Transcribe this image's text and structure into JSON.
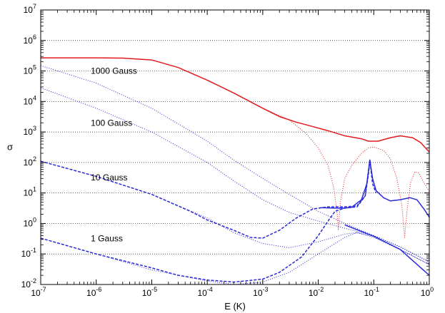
{
  "chart_data": {
    "type": "line",
    "title": "",
    "xlabel": "E (K)",
    "ylabel": "σ",
    "xscale": "log",
    "yscale": "log",
    "xlim": [
      1e-07,
      1
    ],
    "ylim": [
      0.01,
      10000000.0
    ],
    "grid": "horizontal dotted at each y decade",
    "x_tick_labels": [
      {
        "v": 1e-07,
        "base": "10",
        "exp": "-7"
      },
      {
        "v": 1e-06,
        "base": "10",
        "exp": "-6"
      },
      {
        "v": 1e-05,
        "base": "10",
        "exp": "-5"
      },
      {
        "v": 0.0001,
        "base": "10",
        "exp": "-4"
      },
      {
        "v": 0.001,
        "base": "10",
        "exp": "-3"
      },
      {
        "v": 0.01,
        "base": "10",
        "exp": "-2"
      },
      {
        "v": 0.1,
        "base": "10",
        "exp": "-1"
      },
      {
        "v": 1,
        "base": "10",
        "exp": "0"
      }
    ],
    "y_tick_labels": [
      {
        "v": 0.01,
        "base": "10",
        "exp": "-2"
      },
      {
        "v": 0.1,
        "base": "10",
        "exp": "-1"
      },
      {
        "v": 1,
        "base": "10",
        "exp": "0"
      },
      {
        "v": 10,
        "base": "10",
        "exp": "1"
      },
      {
        "v": 100,
        "base": "10",
        "exp": "2"
      },
      {
        "v": 1000,
        "base": "10",
        "exp": "3"
      },
      {
        "v": 10000.0,
        "base": "10",
        "exp": "4"
      },
      {
        "v": 100000.0,
        "base": "10",
        "exp": "5"
      },
      {
        "v": 1000000.0,
        "base": "10",
        "exp": "6"
      },
      {
        "v": 10000000.0,
        "base": "10",
        "exp": "7"
      }
    ],
    "annotations": [
      {
        "text": "1000 Gauss",
        "x": 8e-07,
        "y": 80000.0
      },
      {
        "text": "100 Gauss",
        "x": 8e-07,
        "y": 1600.0
      },
      {
        "text": "10 Gauss",
        "x": 8e-07,
        "y": 26.0
      },
      {
        "text": "1 Gauss",
        "x": 8e-07,
        "y": 0.26
      }
    ],
    "series": [
      {
        "color": "#e31a1c",
        "style": "solid",
        "width": 1.5,
        "points": [
          [
            1e-07,
            270000.0
          ],
          [
            1e-06,
            270000.0
          ],
          [
            3e-06,
            265000.0
          ],
          [
            1e-05,
            230000.0
          ],
          [
            3e-05,
            130000.0
          ],
          [
            0.0001,
            50000.0
          ],
          [
            0.0003,
            19000.0
          ],
          [
            0.001,
            6000.0
          ],
          [
            0.002,
            3200.0
          ],
          [
            0.004,
            2100.0
          ],
          [
            0.008,
            1500.0
          ],
          [
            0.015,
            1100.0
          ],
          [
            0.03,
            750.0
          ],
          [
            0.06,
            600.0
          ],
          [
            0.08,
            500.0
          ],
          [
            0.12,
            500.0
          ],
          [
            0.2,
            650.0
          ],
          [
            0.3,
            750.0
          ],
          [
            0.5,
            650.0
          ],
          [
            0.7,
            450.0
          ],
          [
            1,
            220.0
          ]
        ]
      },
      {
        "color": "#e31a1c",
        "style": "dotted",
        "width": 1,
        "points": [
          [
            0.001,
            6000.0
          ],
          [
            0.003,
            2500.0
          ],
          [
            0.006,
            900.0
          ],
          [
            0.01,
            300.0
          ],
          [
            0.015,
            80.0
          ],
          [
            0.019,
            15.0
          ],
          [
            0.022,
            2
          ],
          [
            0.023,
            0.6
          ],
          [
            0.025,
            5
          ],
          [
            0.03,
            30.0
          ],
          [
            0.04,
            80.0
          ],
          [
            0.06,
            200.0
          ],
          [
            0.08,
            300.0
          ],
          [
            0.1,
            320.0
          ],
          [
            0.15,
            250.0
          ],
          [
            0.2,
            130.0
          ],
          [
            0.26,
            30.0
          ],
          [
            0.32,
            4
          ],
          [
            0.36,
            0.35
          ],
          [
            0.4,
            3
          ],
          [
            0.46,
            22.0
          ],
          [
            0.55,
            50.0
          ],
          [
            0.65,
            45.0
          ],
          [
            0.8,
            22.0
          ],
          [
            1,
            11.0
          ]
        ]
      },
      {
        "color": "#2a2ad8",
        "style": "dotted",
        "width": 1,
        "points": [
          [
            1e-07,
            150000.0
          ],
          [
            1e-06,
            40000.0
          ],
          [
            1e-05,
            6000.0
          ],
          [
            0.0001,
            500.0
          ],
          [
            0.0003,
            120.0
          ],
          [
            0.001,
            30.0
          ],
          [
            0.003,
            9
          ],
          [
            0.01,
            2.5
          ],
          [
            0.03,
            1
          ],
          [
            0.1,
            0.4
          ],
          [
            0.3,
            0.17
          ],
          [
            1,
            0.055
          ]
        ]
      },
      {
        "color": "#2a2ad8",
        "style": "dotted",
        "width": 1,
        "points": [
          [
            1e-07,
            28000.0
          ],
          [
            1e-06,
            6000.0
          ],
          [
            1e-05,
            1000.0
          ],
          [
            0.0001,
            100.0
          ],
          [
            0.0003,
            25.0
          ],
          [
            0.001,
            6
          ],
          [
            0.003,
            2.3
          ],
          [
            0.01,
            1.2
          ],
          [
            0.03,
            0.7
          ],
          [
            0.1,
            0.4
          ],
          [
            0.3,
            0.17
          ],
          [
            1,
            0.055
          ]
        ]
      },
      {
        "color": "#2a2ad8",
        "style": "dotted",
        "width": 1,
        "points": [
          [
            1e-07,
            110.0
          ],
          [
            1e-06,
            35.0
          ],
          [
            1e-05,
            9
          ],
          [
            0.0001,
            1.5
          ],
          [
            0.0003,
            0.5
          ],
          [
            0.001,
            0.22
          ],
          [
            0.003,
            0.16
          ],
          [
            0.01,
            0.25
          ],
          [
            0.03,
            0.45
          ],
          [
            0.05,
            0.5
          ],
          [
            0.1,
            0.35
          ],
          [
            0.3,
            0.14
          ],
          [
            1,
            0.045
          ]
        ]
      },
      {
        "color": "#2a2ad8",
        "style": "dotted",
        "width": 1,
        "points": [
          [
            1e-07,
            0.33
          ],
          [
            1e-06,
            0.1
          ],
          [
            1e-05,
            0.03
          ],
          [
            0.0001,
            0.013
          ],
          [
            0.0003,
            0.01
          ],
          [
            0.001,
            0.012
          ],
          [
            0.003,
            0.025
          ],
          [
            0.01,
            0.1
          ],
          [
            0.03,
            0.35
          ],
          [
            0.05,
            0.5
          ],
          [
            0.1,
            0.38
          ],
          [
            0.3,
            0.14
          ],
          [
            1,
            0.045
          ]
        ]
      },
      {
        "color": "#2a2ad8",
        "style": "dashed",
        "width": 1.5,
        "points": [
          [
            1e-07,
            110.0
          ],
          [
            1e-06,
            35.0
          ],
          [
            1e-05,
            9
          ],
          [
            5e-05,
            2.5
          ],
          [
            0.0001,
            1.3
          ],
          [
            0.0003,
            0.6
          ],
          [
            0.0006,
            0.35
          ],
          [
            0.001,
            0.33
          ],
          [
            0.002,
            0.6
          ],
          [
            0.004,
            1.5
          ],
          [
            0.008,
            3
          ],
          [
            0.015,
            3.5
          ],
          [
            0.03,
            3.5
          ],
          [
            0.05,
            3.8
          ],
          [
            0.07,
            8
          ],
          [
            0.08,
            40.0
          ],
          [
            0.085,
            120.0
          ],
          [
            0.095,
            20.0
          ],
          [
            0.11,
            10.0
          ]
        ]
      },
      {
        "color": "#2a2ad8",
        "style": "solid",
        "width": 1.5,
        "points": [
          [
            0.011,
            3.3
          ],
          [
            0.02,
            3.2
          ],
          [
            0.03,
            3.2
          ],
          [
            0.04,
            3.4
          ],
          [
            0.06,
            6
          ],
          [
            0.075,
            20.0
          ],
          [
            0.085,
            120.0
          ],
          [
            0.095,
            30.0
          ],
          [
            0.11,
            12.0
          ],
          [
            0.15,
            7
          ],
          [
            0.2,
            5.5
          ],
          [
            0.3,
            6
          ],
          [
            0.45,
            7
          ],
          [
            0.6,
            6
          ],
          [
            0.8,
            3
          ],
          [
            1,
            1.6
          ]
        ]
      },
      {
        "color": "#2a2ad8",
        "style": "dashed",
        "width": 1.5,
        "points": [
          [
            1e-07,
            0.33
          ],
          [
            1e-06,
            0.1
          ],
          [
            1e-05,
            0.035
          ],
          [
            3e-05,
            0.02
          ],
          [
            0.0001,
            0.014
          ],
          [
            0.0003,
            0.012
          ],
          [
            0.001,
            0.015
          ],
          [
            0.002,
            0.025
          ],
          [
            0.005,
            0.08
          ],
          [
            0.01,
            0.4
          ],
          [
            0.015,
            1.2
          ],
          [
            0.02,
            2.5
          ],
          [
            0.03,
            3.2
          ],
          [
            0.05,
            3.5
          ],
          [
            0.07,
            8
          ],
          [
            0.085,
            120.0
          ]
        ]
      },
      {
        "color": "#2a2ad8",
        "style": "solid",
        "width": 1.5,
        "points": [
          [
            0.03,
            0.9
          ],
          [
            0.1,
            0.38
          ],
          [
            0.3,
            0.14
          ],
          [
            1,
            0.02
          ]
        ]
      }
    ]
  }
}
